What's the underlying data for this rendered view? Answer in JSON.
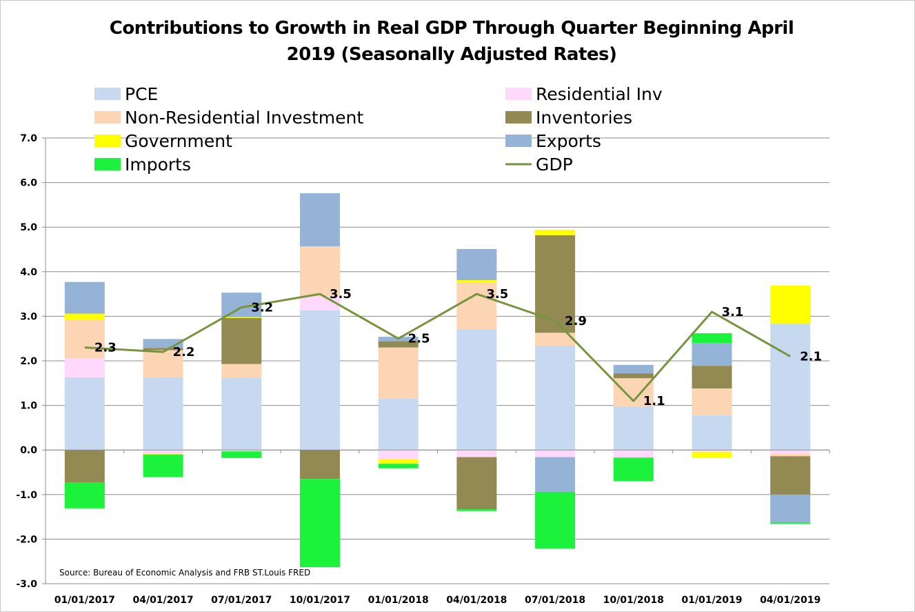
{
  "chart_data": {
    "type": "bar",
    "stacked": true,
    "title": "Contributions to Growth in Real GDP Through Quarter Beginning April 2019 (Seasonally Adjusted Rates)",
    "title_lines": [
      "Contributions to Growth in Real GDP Through Quarter Beginning April",
      "2019 (Seasonally Adjusted Rates)"
    ],
    "categories": [
      "01/01/2017",
      "04/01/2017",
      "07/01/2017",
      "10/01/2017",
      "01/01/2018",
      "04/01/2018",
      "07/01/2018",
      "10/01/2018",
      "01/01/2019",
      "04/01/2019"
    ],
    "ylim": [
      -3.0,
      7.0
    ],
    "yticks": [
      "-3.0",
      "-2.0",
      "-1.0",
      "0.0",
      "1.0",
      "2.0",
      "3.0",
      "4.0",
      "5.0",
      "6.0",
      "7.0"
    ],
    "grid": true,
    "legend_placement": "top, two columns",
    "series": [
      {
        "name": "PCE",
        "color": "#c6d9f1",
        "values": [
          1.63,
          1.63,
          1.62,
          3.13,
          1.15,
          2.71,
          2.34,
          0.98,
          0.78,
          2.84
        ]
      },
      {
        "name": "Residential Inv",
        "color": "#ffd9fc",
        "values": [
          0.43,
          -0.09,
          -0.03,
          0.32,
          -0.2,
          -0.16,
          -0.16,
          -0.17,
          -0.04,
          -0.09
        ]
      },
      {
        "name": "Non-Residential Investment",
        "color": "#fcd5b5",
        "values": [
          0.86,
          0.61,
          0.31,
          1.12,
          1.15,
          1.04,
          0.29,
          0.63,
          0.6,
          -0.05
        ]
      },
      {
        "name": "Inventories",
        "color": "#938953",
        "values": [
          -0.73,
          0.05,
          1.03,
          -0.65,
          0.14,
          -1.17,
          2.19,
          0.11,
          0.51,
          -0.86
        ]
      },
      {
        "name": "Government",
        "color": "#ffff00",
        "values": [
          0.14,
          -0.01,
          0.02,
          0.0,
          -0.11,
          0.06,
          0.12,
          0.0,
          -0.14,
          0.85
        ]
      },
      {
        "name": "Exports",
        "color": "#95b3d7",
        "values": [
          0.71,
          0.2,
          0.55,
          1.19,
          0.1,
          0.7,
          -0.78,
          0.19,
          0.51,
          -0.63
        ]
      },
      {
        "name": "Imports",
        "color": "#1cf23b",
        "values": [
          -0.58,
          -0.51,
          -0.15,
          -1.98,
          -0.1,
          -0.04,
          -1.27,
          -0.53,
          0.22,
          -0.03
        ]
      }
    ],
    "line": {
      "name": "GDP",
      "color": "#77933c",
      "values": [
        2.3,
        2.2,
        3.2,
        3.5,
        2.5,
        3.5,
        2.9,
        1.1,
        3.1,
        2.1
      ],
      "labels": [
        "2.3",
        "2.2",
        "3.2",
        "3.5",
        "2.5",
        "3.5",
        "2.9",
        "1.1",
        "3.1",
        "2.1"
      ]
    },
    "legend": [
      "PCE",
      "Residential Inv",
      "Non-Residential Investment",
      "Inventories",
      "Government",
      "Exports",
      "Imports",
      "GDP"
    ],
    "source": "Source: Bureau of Economic Analysis and FRB ST.Louis FRED"
  }
}
